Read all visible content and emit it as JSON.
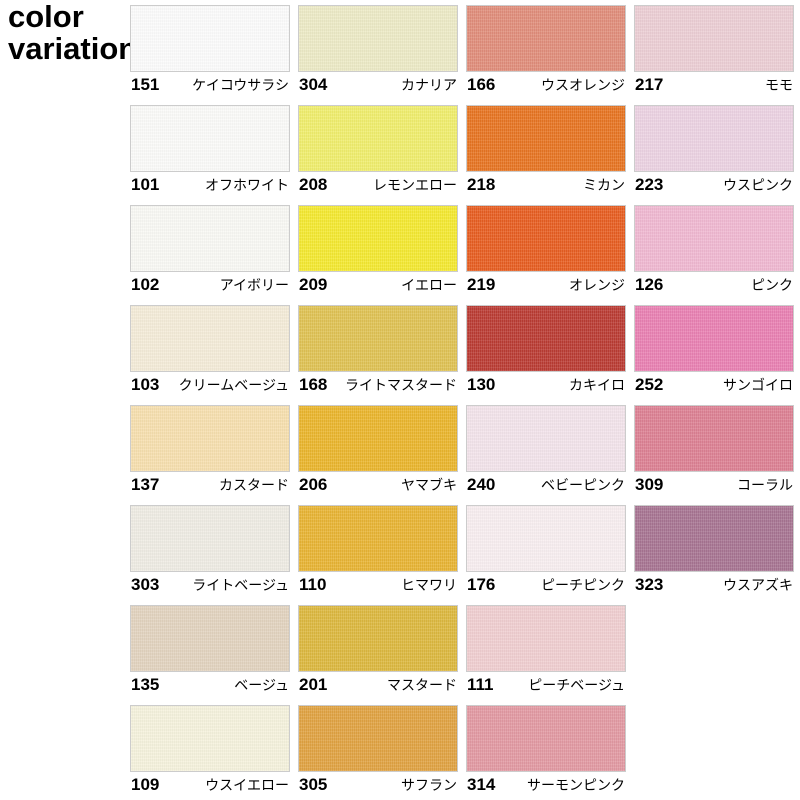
{
  "title": {
    "line1": "color",
    "line2": "variation"
  },
  "swatches": [
    {
      "code": "151",
      "name": "ケイコウサラシ",
      "color": "#fcfcfc"
    },
    {
      "code": "304",
      "name": "カナリア",
      "color": "#edeac6"
    },
    {
      "code": "166",
      "name": "ウスオレンジ",
      "color": "#e08d7a"
    },
    {
      "code": "217",
      "name": "モモ",
      "color": "#ecced4"
    },
    {
      "code": "101",
      "name": "オフホワイト",
      "color": "#fbfbf9"
    },
    {
      "code": "208",
      "name": "レモンエロー",
      "color": "#f0ee6c"
    },
    {
      "code": "218",
      "name": "ミカン",
      "color": "#e77421"
    },
    {
      "code": "223",
      "name": "ウスピンク",
      "color": "#ecd2e2"
    },
    {
      "code": "102",
      "name": "アイボリー",
      "color": "#f9f9f4"
    },
    {
      "code": "209",
      "name": "イエロー",
      "color": "#f4e930"
    },
    {
      "code": "219",
      "name": "オレンジ",
      "color": "#e75d20"
    },
    {
      "code": "126",
      "name": "ピンク",
      "color": "#f0b8d1"
    },
    {
      "code": "103",
      "name": "クリームベージュ",
      "color": "#f4ecd8"
    },
    {
      "code": "168",
      "name": "ライトマスタード",
      "color": "#dfc253"
    },
    {
      "code": "130",
      "name": "カキイロ",
      "color": "#bb3b33"
    },
    {
      "code": "252",
      "name": "サンゴイロ",
      "color": "#e980b2"
    },
    {
      "code": "137",
      "name": "カスタード",
      "color": "#f7dfae"
    },
    {
      "code": "206",
      "name": "ヤマブキ",
      "color": "#eab52c"
    },
    {
      "code": "240",
      "name": "ベビーピンク",
      "color": "#f3e3eb"
    },
    {
      "code": "309",
      "name": "コーラル",
      "color": "#dc8093"
    },
    {
      "code": "303",
      "name": "ライトベージュ",
      "color": "#efece3"
    },
    {
      "code": "110",
      "name": "ヒマワリ",
      "color": "#e8b433"
    },
    {
      "code": "176",
      "name": "ピーチピンク",
      "color": "#f8eef0"
    },
    {
      "code": "323",
      "name": "ウスアズキ",
      "color": "#a77492"
    },
    {
      "code": "135",
      "name": "ベージュ",
      "color": "#e2d3bf"
    },
    {
      "code": "201",
      "name": "マスタード",
      "color": "#dcb83e"
    },
    {
      "code": "111",
      "name": "ピーチベージュ",
      "color": "#f0ced0"
    },
    {
      "code": "109",
      "name": "ウスイエロー",
      "color": "#f5f2dc"
    },
    {
      "code": "305",
      "name": "サフラン",
      "color": "#e0a241"
    },
    {
      "code": "314",
      "name": "サーモンピンク",
      "color": "#e299a2"
    }
  ]
}
